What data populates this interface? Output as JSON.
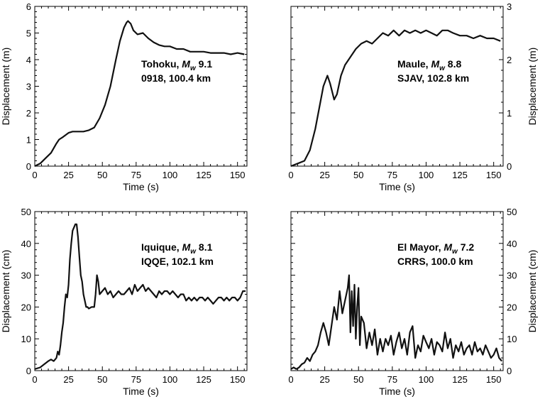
{
  "chart_data": [
    {
      "type": "line",
      "panel": "top-left",
      "annotation": {
        "event": "Tohoku, ",
        "mag_sym": "M",
        "mag_sub": "w",
        "mag_val": " 9.1",
        "station": "0918, 100.4 km"
      },
      "xlabel": "Time (s)",
      "ylabel": "Displacement (m)",
      "ylabel_side": "left",
      "xlim": [
        0,
        157
      ],
      "ylim": [
        0,
        6
      ],
      "xticks": [
        0,
        25,
        50,
        75,
        100,
        125,
        150
      ],
      "yticks": [
        0,
        1,
        2,
        3,
        4,
        5,
        6
      ],
      "series": [
        {
          "x": [
            0,
            4,
            8,
            12,
            16,
            18,
            21,
            25,
            28,
            32,
            36,
            40,
            44,
            48,
            52,
            56,
            60,
            63,
            66,
            68,
            69,
            71,
            73,
            76,
            80,
            84,
            88,
            92,
            96,
            100,
            105,
            110,
            115,
            120,
            125,
            130,
            135,
            140,
            145,
            150,
            155
          ],
          "y": [
            0,
            0.1,
            0.3,
            0.5,
            0.85,
            1.0,
            1.1,
            1.25,
            1.3,
            1.3,
            1.3,
            1.35,
            1.45,
            1.8,
            2.3,
            3.0,
            4.0,
            4.7,
            5.2,
            5.4,
            5.45,
            5.35,
            5.1,
            4.95,
            5.0,
            4.8,
            4.65,
            4.55,
            4.5,
            4.5,
            4.4,
            4.4,
            4.3,
            4.3,
            4.3,
            4.25,
            4.25,
            4.25,
            4.2,
            4.25,
            4.2
          ]
        }
      ]
    },
    {
      "type": "line",
      "panel": "top-right",
      "annotation": {
        "event": "Maule, ",
        "mag_sym": "M",
        "mag_sub": "w",
        "mag_val": " 8.8",
        "station": "SJAV, 102.8 km"
      },
      "xlabel": "Time (s)",
      "ylabel": "Displacement (m)",
      "ylabel_side": "right",
      "xlim": [
        0,
        157
      ],
      "ylim": [
        0,
        3
      ],
      "xticks": [
        0,
        25,
        50,
        75,
        100,
        125,
        150
      ],
      "yticks": [
        0,
        1,
        2,
        3
      ],
      "series": [
        {
          "x": [
            0,
            5,
            10,
            14,
            18,
            21,
            24,
            27,
            29,
            32,
            34,
            37,
            40,
            44,
            48,
            52,
            56,
            60,
            64,
            68,
            72,
            76,
            80,
            84,
            88,
            92,
            96,
            100,
            104,
            108,
            112,
            116,
            120,
            125,
            130,
            135,
            140,
            145,
            150,
            155
          ],
          "y": [
            0,
            0.05,
            0.1,
            0.3,
            0.7,
            1.1,
            1.5,
            1.7,
            1.55,
            1.25,
            1.35,
            1.7,
            1.9,
            2.05,
            2.2,
            2.3,
            2.35,
            2.3,
            2.4,
            2.5,
            2.45,
            2.55,
            2.45,
            2.55,
            2.5,
            2.55,
            2.5,
            2.55,
            2.5,
            2.45,
            2.55,
            2.55,
            2.5,
            2.45,
            2.45,
            2.4,
            2.45,
            2.4,
            2.4,
            2.35
          ]
        }
      ]
    },
    {
      "type": "line",
      "panel": "bottom-left",
      "annotation": {
        "event": "Iquique, ",
        "mag_sym": "M",
        "mag_sub": "w",
        "mag_val": " 8.1",
        "station": "IQQE, 102.1 km"
      },
      "xlabel": "Time (s)",
      "ylabel": "Displacement (cm)",
      "ylabel_side": "left",
      "xlim": [
        0,
        157
      ],
      "ylim": [
        0,
        50
      ],
      "xticks": [
        0,
        25,
        50,
        75,
        100,
        125,
        150
      ],
      "yticks": [
        0,
        10,
        20,
        30,
        40,
        50
      ],
      "series": [
        {
          "x": [
            0,
            4,
            7,
            10,
            12,
            14,
            16,
            17,
            18,
            19,
            20,
            21,
            22,
            23,
            24,
            25,
            26,
            27,
            28,
            29,
            30,
            31,
            32,
            33,
            34,
            35,
            36,
            37,
            38,
            39,
            40,
            42,
            44,
            45,
            46,
            47,
            48,
            50,
            52,
            54,
            56,
            58,
            60,
            62,
            64,
            66,
            68,
            70,
            72,
            74,
            76,
            78,
            80,
            82,
            84,
            86,
            88,
            90,
            92,
            94,
            96,
            98,
            100,
            102,
            104,
            106,
            108,
            110,
            112,
            114,
            116,
            118,
            120,
            122,
            124,
            126,
            128,
            130,
            132,
            134,
            136,
            138,
            140,
            142,
            144,
            146,
            148,
            150,
            152,
            154,
            156
          ],
          "y": [
            0.5,
            1,
            2,
            3,
            3.5,
            3,
            4,
            6,
            5,
            8,
            12,
            15,
            20,
            24,
            23,
            27,
            35,
            40,
            44,
            45,
            46,
            46,
            42,
            36,
            30,
            28,
            24,
            22,
            20,
            20,
            19.5,
            20,
            20,
            24,
            30,
            28,
            24,
            25,
            26,
            24,
            25,
            23,
            24,
            25,
            24,
            24,
            25,
            26,
            24,
            27,
            25,
            26,
            27,
            25,
            26,
            25,
            24,
            23,
            25,
            24,
            25,
            25,
            24,
            25,
            24,
            23,
            24,
            24,
            22,
            23,
            22,
            23,
            22,
            23,
            23,
            22,
            23,
            22,
            21,
            22,
            23,
            23,
            22,
            23,
            22,
            23,
            23,
            22,
            23,
            25,
            25
          ]
        }
      ]
    },
    {
      "type": "line",
      "panel": "bottom-right",
      "annotation": {
        "event": "El Mayor, ",
        "mag_sym": "M",
        "mag_sub": "w",
        "mag_val": " 7.2",
        "station": "CRRS, 100.0 km"
      },
      "xlabel": "Time (s)",
      "ylabel": "Displacement (cm)",
      "ylabel_side": "right",
      "xlim": [
        0,
        157
      ],
      "ylim": [
        0,
        50
      ],
      "xticks": [
        0,
        25,
        50,
        75,
        100,
        125,
        150
      ],
      "yticks": [
        0,
        10,
        20,
        30,
        40,
        50
      ],
      "series": [
        {
          "x": [
            0,
            2,
            4,
            6,
            8,
            10,
            12,
            14,
            16,
            18,
            20,
            22,
            24,
            26,
            28,
            30,
            32,
            34,
            36,
            38,
            40,
            42,
            43,
            44,
            45,
            46,
            47,
            48,
            49,
            50,
            51,
            52,
            54,
            56,
            58,
            60,
            62,
            64,
            66,
            68,
            70,
            72,
            74,
            76,
            78,
            80,
            82,
            84,
            86,
            88,
            90,
            92,
            94,
            96,
            98,
            100,
            102,
            104,
            106,
            108,
            110,
            112,
            114,
            116,
            118,
            120,
            122,
            124,
            126,
            128,
            130,
            132,
            134,
            136,
            138,
            140,
            142,
            144,
            146,
            148,
            150,
            152,
            154,
            156
          ],
          "y": [
            0.5,
            1,
            0.5,
            1,
            2,
            2.5,
            4,
            3,
            5,
            6,
            8,
            12,
            15,
            12,
            8,
            14,
            20,
            16,
            25,
            18,
            22,
            26,
            30,
            12,
            25,
            14,
            27,
            10,
            20,
            26,
            8,
            17,
            15,
            7,
            12,
            8,
            13,
            5,
            10,
            6,
            10,
            8,
            11,
            5,
            9,
            12,
            7,
            10,
            5,
            12,
            14,
            4,
            8,
            6,
            11,
            9,
            7,
            10,
            5,
            9,
            8,
            6,
            12,
            7,
            10,
            4,
            8,
            6,
            9,
            5,
            7,
            8,
            5,
            9,
            6,
            7,
            5,
            8,
            6,
            4,
            5,
            7,
            4,
            3
          ]
        }
      ]
    }
  ]
}
